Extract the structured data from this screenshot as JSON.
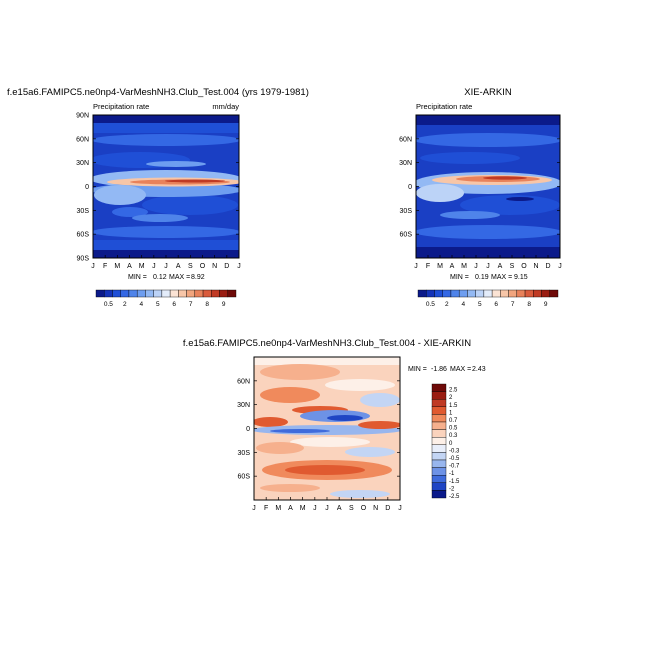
{
  "chart_data": [
    {
      "type": "heatmap",
      "title": "f.e15a6.FAMIPC5.ne0np4-VarMeshNH3.Club_Test.004 (yrs 1979-1981)",
      "left_label": "Precipitation rate",
      "right_label": "mm/day",
      "x_ticks": [
        "J",
        "F",
        "M",
        "A",
        "M",
        "J",
        "J",
        "A",
        "S",
        "O",
        "N",
        "D",
        "J"
      ],
      "y_ticks": [
        "90N",
        "60N",
        "30N",
        "0",
        "30S",
        "60S",
        "90S"
      ],
      "stats": {
        "min_label": "MIN =",
        "min": "0.12",
        "max_label": "MAX =",
        "max": "8.92"
      },
      "colorbar_labels": [
        "0.5",
        "2",
        "4",
        "5",
        "6",
        "7",
        "8",
        "9"
      ]
    },
    {
      "type": "heatmap",
      "title": "XIE-ARKIN",
      "left_label": "Precipitation rate",
      "right_label": "",
      "x_ticks": [
        "J",
        "F",
        "M",
        "A",
        "M",
        "J",
        "J",
        "A",
        "S",
        "O",
        "N",
        "D",
        "J"
      ],
      "y_ticks": [
        "60N",
        "30N",
        "0",
        "30S",
        "60S"
      ],
      "stats": {
        "min_label": "MIN =",
        "min": "0.19",
        "max_label": "MAX =",
        "max": "9.15"
      },
      "colorbar_labels": [
        "0.5",
        "2",
        "4",
        "5",
        "6",
        "7",
        "8",
        "9"
      ]
    },
    {
      "type": "heatmap",
      "title": "f.e15a6.FAMIPC5.ne0np4-VarMeshNH3.Club_Test.004 - XIE-ARKIN",
      "x_ticks": [
        "J",
        "F",
        "M",
        "A",
        "M",
        "J",
        "J",
        "A",
        "S",
        "O",
        "N",
        "D",
        "J"
      ],
      "y_ticks": [
        "60N",
        "30N",
        "0",
        "30S",
        "60S"
      ],
      "stats": {
        "min_label": "MIN =",
        "min": "-1.86",
        "max_label": "MAX =",
        "max": "2.43"
      },
      "colorbar_labels": [
        "2.5",
        "2",
        "1.5",
        "1",
        "0.7",
        "0.5",
        "0.3",
        "0",
        "-0.3",
        "-0.5",
        "-0.7",
        "-1",
        "-1.5",
        "-2",
        "-2.5"
      ]
    }
  ],
  "colors": {
    "precip_scale": [
      "#0b1a8a",
      "#1433b8",
      "#1f4fd6",
      "#3468e4",
      "#4f84ea",
      "#6e9ef0",
      "#93b9f4",
      "#bcd3f7",
      "#e3ecfa",
      "#fbe3d4",
      "#f7c6a8",
      "#f1a57e",
      "#e8825b",
      "#d95b3c",
      "#c03a24",
      "#9a1d12",
      "#6e0a08"
    ],
    "diff_scale": [
      "#6e0a08",
      "#9a1d12",
      "#c03a24",
      "#e05a30",
      "#f08a5c",
      "#f6b08d",
      "#fad3bd",
      "#fdf0e8",
      "#e8eefa",
      "#c3d5f4",
      "#98b6ee",
      "#6d92e6",
      "#3f6bdc",
      "#1f45c4",
      "#0b1a8a"
    ]
  }
}
